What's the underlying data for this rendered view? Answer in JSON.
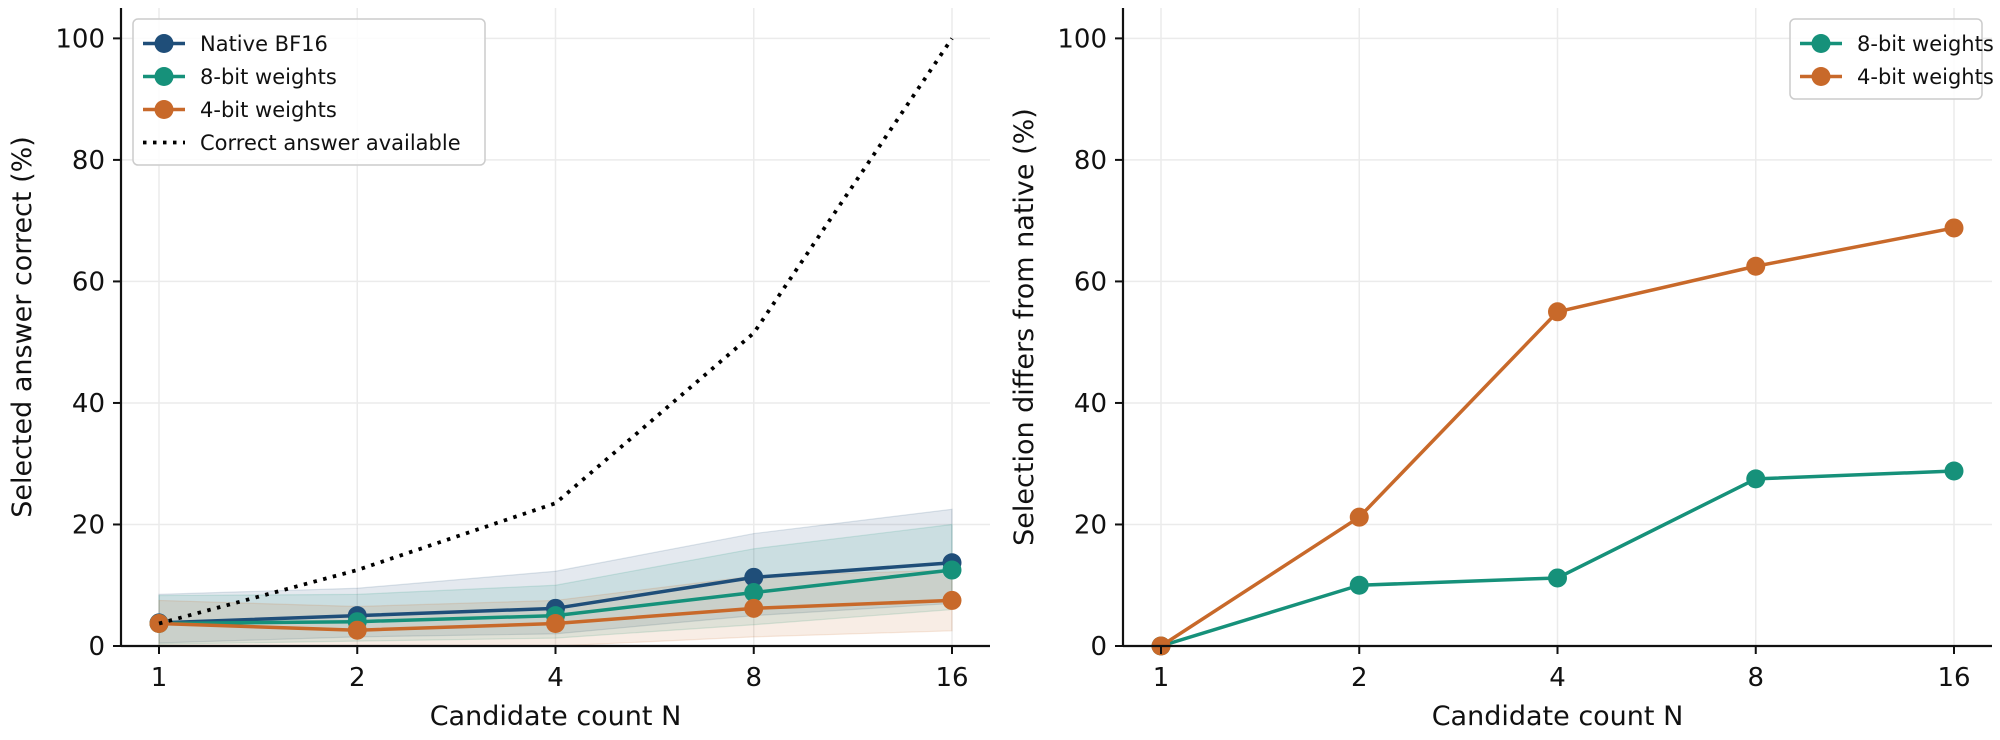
{
  "chart_data": [
    {
      "type": "line",
      "xlabel": "Candidate count N",
      "ylabel": "Selected answer correct (%)",
      "x": [
        1,
        2,
        4,
        8,
        16
      ],
      "x_tick_labels": [
        "1",
        "2",
        "4",
        "8",
        "16"
      ],
      "x_scale": "log2",
      "ylim": [
        0,
        105
      ],
      "y_ticks": [
        0,
        20,
        40,
        60,
        80,
        100
      ],
      "grid": true,
      "legend_position": "top-left",
      "series": [
        {
          "name": "Native BF16",
          "color": "#1f4e79",
          "marker": true,
          "style": "solid",
          "values": [
            3.8,
            5.0,
            6.2,
            11.3,
            13.7
          ],
          "band_low": [
            0.5,
            1.5,
            2.0,
            5.0,
            7.0
          ],
          "band_high": [
            8.5,
            9.5,
            12.3,
            18.5,
            22.5
          ]
        },
        {
          "name": "8-bit weights",
          "color": "#16917a",
          "marker": true,
          "style": "solid",
          "values": [
            3.7,
            4.0,
            5.0,
            8.8,
            12.5
          ],
          "band_low": [
            0.3,
            0.8,
            1.3,
            3.5,
            6.0
          ],
          "band_high": [
            8.3,
            8.5,
            10.0,
            16.0,
            20.0
          ]
        },
        {
          "name": "4-bit weights",
          "color": "#c8692a",
          "marker": true,
          "style": "solid",
          "values": [
            3.7,
            2.6,
            3.7,
            6.2,
            7.5
          ],
          "band_low": [
            0.0,
            0.0,
            0.0,
            1.5,
            2.5
          ],
          "band_high": [
            7.5,
            6.5,
            7.5,
            11.5,
            12.5
          ]
        },
        {
          "name": "Correct answer available",
          "color": "#000000",
          "marker": false,
          "style": "dotted",
          "values": [
            3.7,
            12.5,
            23.5,
            51.5,
            100
          ]
        }
      ]
    },
    {
      "type": "line",
      "xlabel": "Candidate count N",
      "ylabel": "Selection differs from native (%)",
      "x": [
        1,
        2,
        4,
        8,
        16
      ],
      "x_tick_labels": [
        "1",
        "2",
        "4",
        "8",
        "16"
      ],
      "x_scale": "log2",
      "ylim": [
        0,
        105
      ],
      "y_ticks": [
        0,
        20,
        40,
        60,
        80,
        100
      ],
      "grid": true,
      "legend_position": "top-right",
      "series": [
        {
          "name": "8-bit weights",
          "color": "#16917a",
          "marker": true,
          "style": "solid",
          "values": [
            0,
            10.0,
            11.2,
            27.5,
            28.8
          ]
        },
        {
          "name": "4-bit weights",
          "color": "#c8692a",
          "marker": true,
          "style": "solid",
          "values": [
            0,
            21.2,
            55.0,
            62.5,
            68.8
          ]
        }
      ]
    }
  ]
}
